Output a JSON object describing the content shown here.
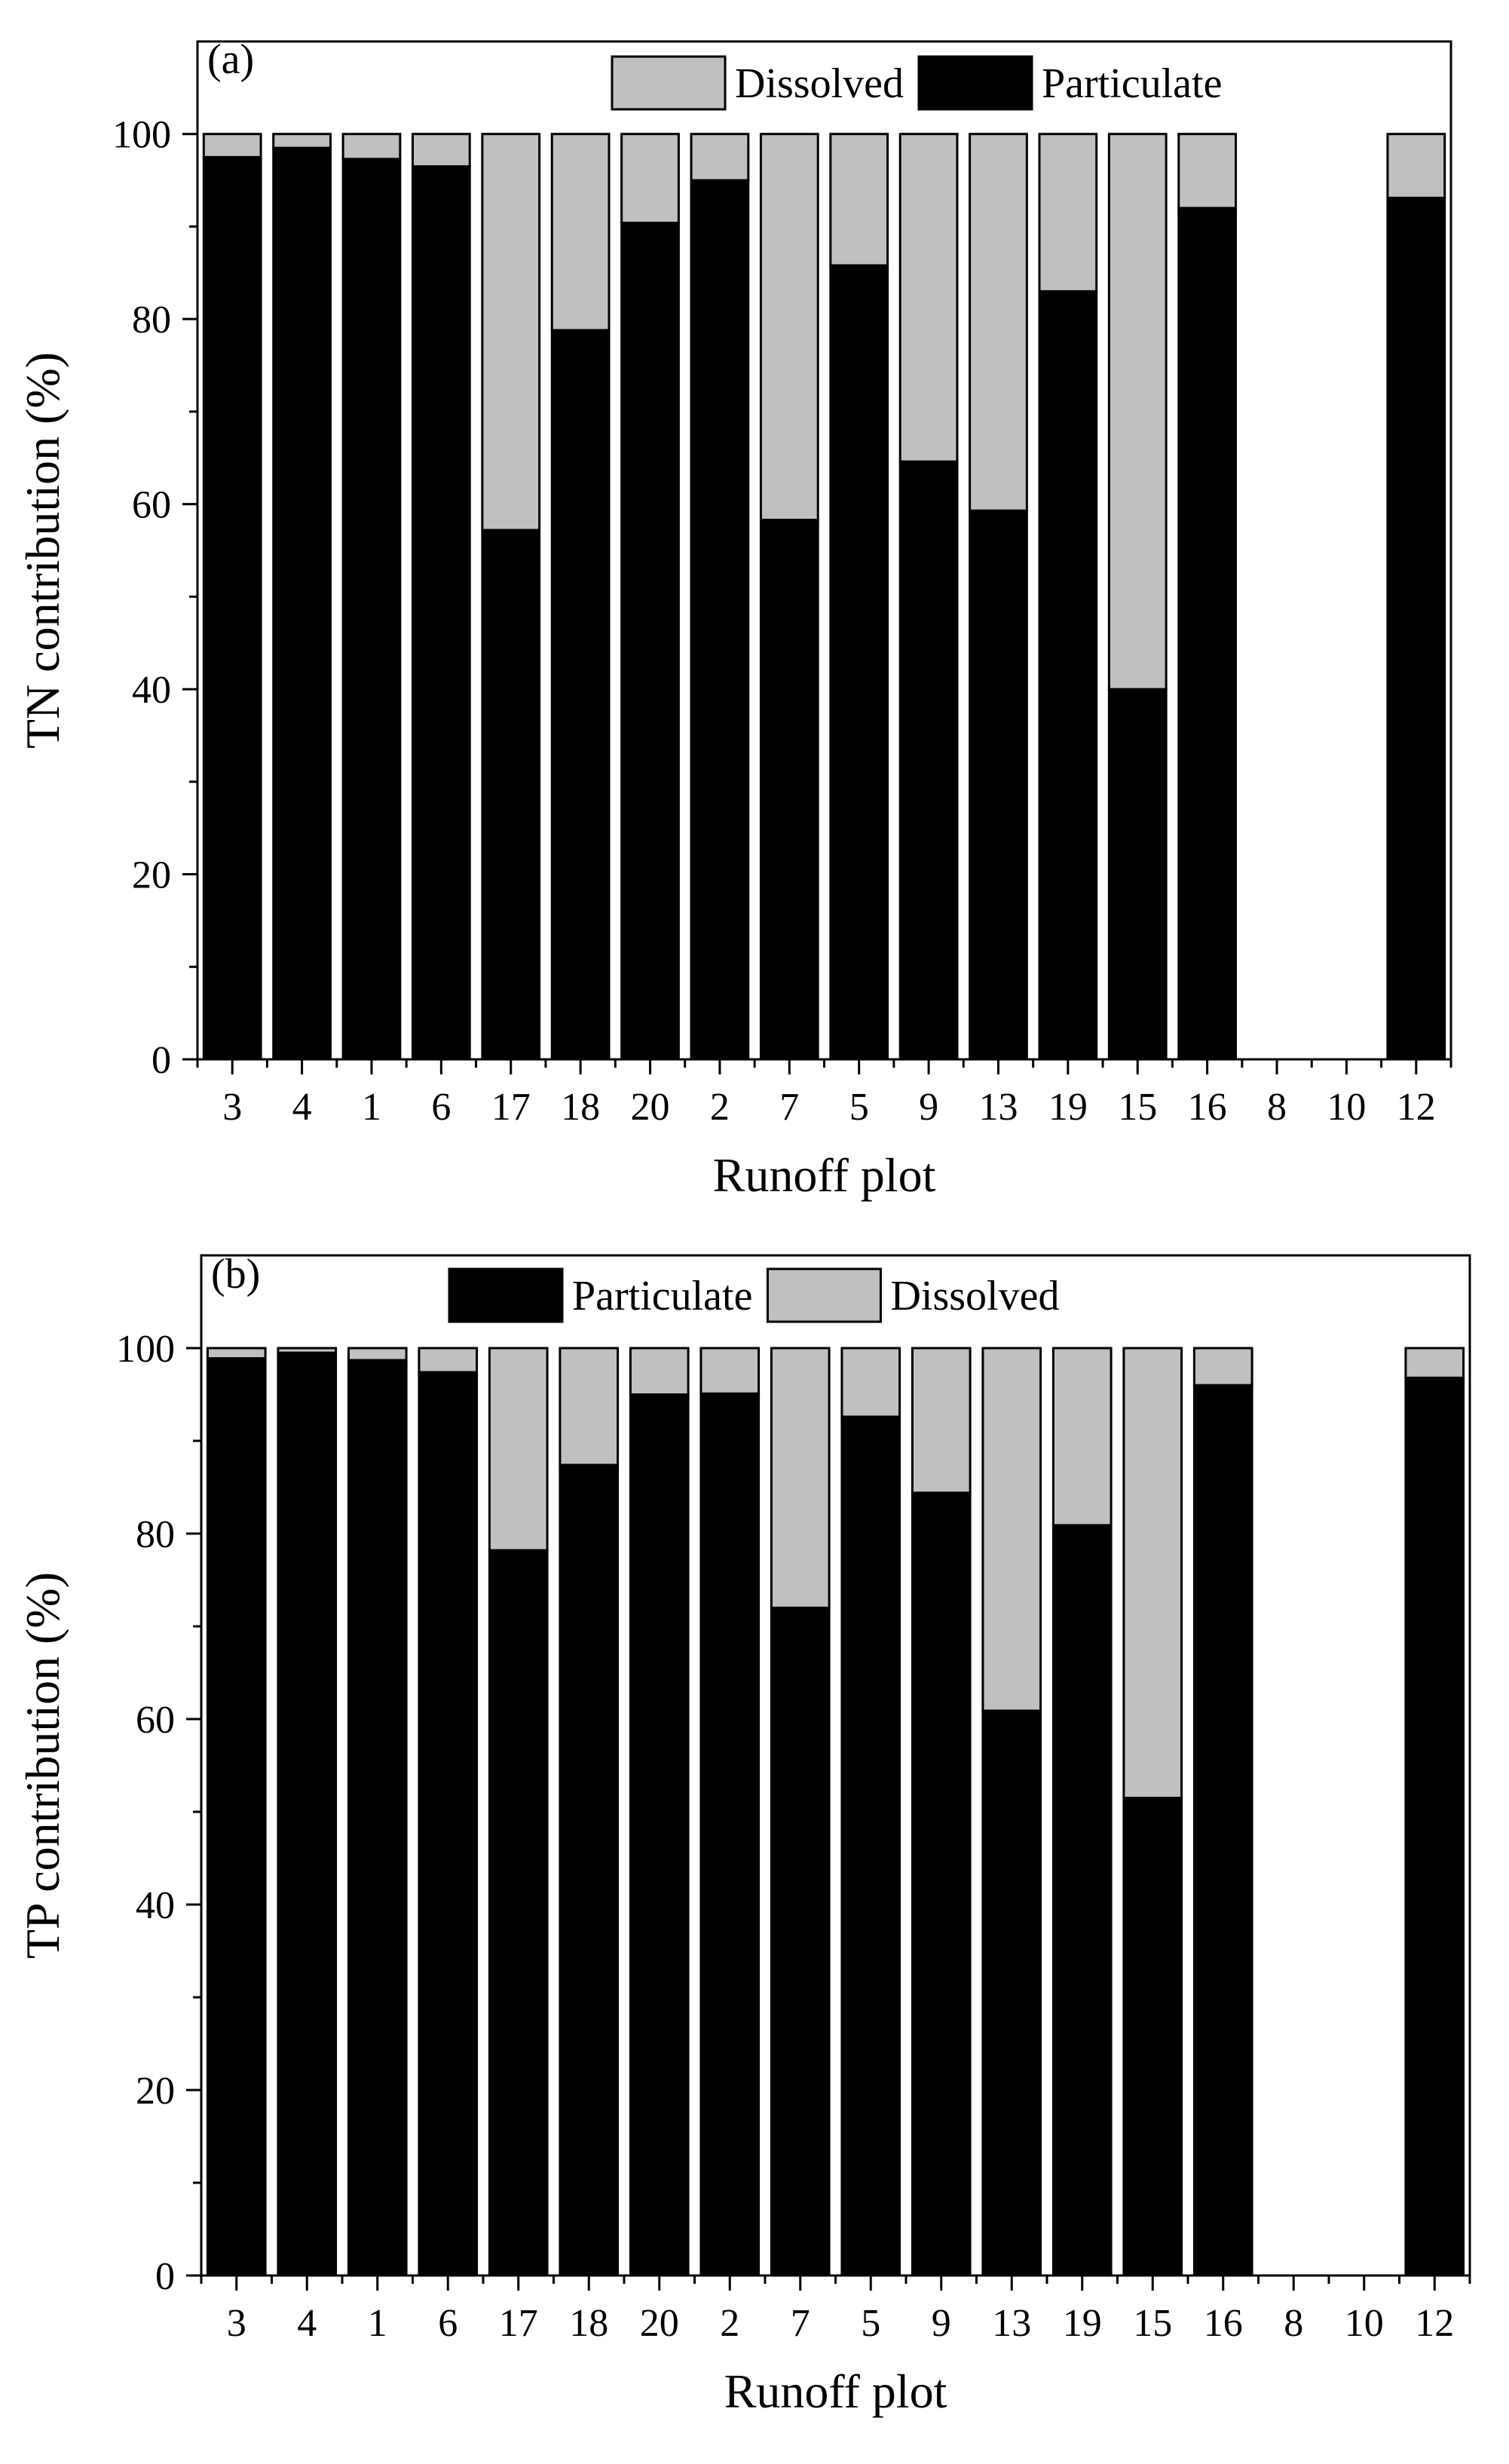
{
  "colors": {
    "dissolved": "#c0c0c0",
    "particulate": "#000000",
    "axis": "#000000",
    "background": "#ffffff"
  },
  "chart_data": [
    {
      "type": "bar",
      "stacked": true,
      "panel_label": "(a)",
      "xlabel": "Runoff plot",
      "ylabel": "TN contribution (%)",
      "ylim": [
        0,
        110
      ],
      "yticks": [
        0,
        20,
        40,
        60,
        80,
        100
      ],
      "grid": false,
      "legend": {
        "placement": "top-right",
        "order": [
          "Dissolved",
          "Particulate"
        ]
      },
      "categories": [
        "3",
        "4",
        "1",
        "6",
        "17",
        "18",
        "20",
        "2",
        "7",
        "5",
        "9",
        "13",
        "19",
        "15",
        "16",
        "8",
        "10",
        "12"
      ],
      "series": [
        {
          "name": "Particulate",
          "color": "#000000",
          "values": [
            97.5,
            98.5,
            97.3,
            96.5,
            57.2,
            78.8,
            90.4,
            95.0,
            58.3,
            85.8,
            64.6,
            59.3,
            83.0,
            40.0,
            92.0,
            0,
            0,
            93.1
          ]
        },
        {
          "name": "Dissolved",
          "color": "#c0c0c0",
          "values": [
            2.5,
            1.5,
            2.7,
            3.5,
            42.8,
            21.2,
            9.6,
            5.0,
            41.7,
            14.2,
            35.4,
            40.7,
            17.0,
            60.0,
            8.0,
            0,
            0,
            6.9
          ]
        }
      ]
    },
    {
      "type": "bar",
      "stacked": true,
      "panel_label": "(b)",
      "xlabel": "Runoff plot",
      "ylabel": "TP contribution (%)",
      "ylim": [
        0,
        110
      ],
      "yticks": [
        0,
        20,
        40,
        60,
        80,
        100
      ],
      "grid": false,
      "legend": {
        "placement": "top-center",
        "order": [
          "Particulate",
          "Dissolved"
        ]
      },
      "categories": [
        "3",
        "4",
        "1",
        "6",
        "17",
        "18",
        "20",
        "2",
        "7",
        "5",
        "9",
        "13",
        "19",
        "15",
        "16",
        "8",
        "10",
        "12"
      ],
      "series": [
        {
          "name": "Particulate",
          "color": "#000000",
          "values": [
            98.9,
            99.5,
            98.7,
            97.4,
            78.2,
            87.4,
            95.0,
            95.1,
            72.0,
            92.6,
            84.4,
            60.9,
            80.9,
            51.5,
            96.0,
            0,
            0,
            96.8
          ]
        },
        {
          "name": "Dissolved",
          "color": "#c0c0c0",
          "values": [
            1.1,
            0.5,
            1.3,
            2.6,
            21.8,
            12.6,
            5.0,
            4.9,
            28.0,
            7.4,
            15.6,
            39.1,
            19.1,
            48.5,
            4.0,
            0,
            0,
            3.2
          ]
        }
      ]
    }
  ]
}
